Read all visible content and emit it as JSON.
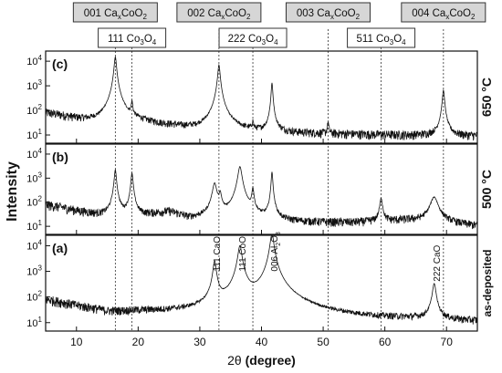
{
  "chart_data": {
    "type": "line",
    "xlabel_prefix": "2θ",
    "xlabel_unit": "(degree)",
    "ylabel": "Intensity",
    "xlim": [
      5,
      75
    ],
    "x_ticks": [
      10,
      20,
      30,
      40,
      50,
      60,
      70
    ],
    "y_scale": "log",
    "ylim": [
      6,
      20000
    ],
    "y_ticks": [
      {
        "base": "10",
        "exp": "1",
        "value": 10
      },
      {
        "base": "10",
        "exp": "2",
        "value": 100
      },
      {
        "base": "10",
        "exp": "3",
        "value": 1000
      },
      {
        "base": "10",
        "exp": "4",
        "value": 10000
      }
    ],
    "reference_lines_x": [
      16.3,
      19.0,
      33.1,
      38.6,
      50.8,
      59.4,
      69.5
    ],
    "reference_labels": [
      {
        "id": "001",
        "parts": [
          "001 Ca",
          "x",
          "CoO",
          "2"
        ],
        "x": 16.3,
        "row": 0
      },
      {
        "id": "002",
        "parts": [
          "002 Ca",
          "x",
          "CoO",
          "2"
        ],
        "x": 33.1,
        "row": 0
      },
      {
        "id": "003",
        "parts": [
          "003 Ca",
          "x",
          "CoO",
          "2"
        ],
        "x": 50.8,
        "row": 0
      },
      {
        "id": "004",
        "parts": [
          "004 Ca",
          "x",
          "CoO",
          "2"
        ],
        "x": 69.5,
        "row": 0
      },
      {
        "id": "111co3o4",
        "parts": [
          "111 Co",
          "3",
          "O",
          "4"
        ],
        "x": 19.0,
        "row": 1
      },
      {
        "id": "222co3o4",
        "parts": [
          "222 Co",
          "3",
          "O",
          "4"
        ],
        "x": 38.6,
        "row": 1
      },
      {
        "id": "511co3o4",
        "parts": [
          "511 Co",
          "3",
          "O",
          "4"
        ],
        "x": 59.4,
        "row": 1
      }
    ],
    "panels": [
      {
        "id": "c",
        "label": "(c)",
        "side_label": "650 °C",
        "baseline": [
          [
            5,
            80
          ],
          [
            10,
            45
          ],
          [
            14,
            25
          ],
          [
            20,
            30
          ],
          [
            25,
            22
          ],
          [
            30,
            14
          ],
          [
            40,
            12
          ],
          [
            50,
            11
          ],
          [
            60,
            10
          ],
          [
            75,
            9
          ]
        ],
        "peaks": [
          {
            "x": 16.3,
            "h": 15000,
            "w": 0.32
          },
          {
            "x": 19.0,
            "h": 180,
            "w": 0.22
          },
          {
            "x": 33.1,
            "h": 7000,
            "w": 0.32
          },
          {
            "x": 38.6,
            "h": 20,
            "w": 0.2
          },
          {
            "x": 41.7,
            "h": 1300,
            "w": 0.22
          },
          {
            "x": 50.8,
            "h": 22,
            "w": 0.22
          },
          {
            "x": 69.5,
            "h": 650,
            "w": 0.3
          }
        ],
        "annotations": []
      },
      {
        "id": "b",
        "label": "(b)",
        "side_label": "500 °C",
        "baseline": [
          [
            5,
            80
          ],
          [
            10,
            45
          ],
          [
            14,
            28
          ],
          [
            20,
            25
          ],
          [
            25,
            40
          ],
          [
            28,
            20
          ],
          [
            35,
            15
          ],
          [
            45,
            14
          ],
          [
            55,
            14
          ],
          [
            64,
            18
          ],
          [
            75,
            10
          ]
        ],
        "peaks": [
          {
            "x": 16.3,
            "h": 2200,
            "w": 0.3
          },
          {
            "x": 19.0,
            "h": 1600,
            "w": 0.3
          },
          {
            "x": 32.4,
            "h": 600,
            "w": 0.6
          },
          {
            "x": 33.3,
            "h": 200,
            "w": 0.4
          },
          {
            "x": 36.5,
            "h": 3000,
            "w": 0.55
          },
          {
            "x": 38.6,
            "h": 350,
            "w": 0.3
          },
          {
            "x": 41.7,
            "h": 1800,
            "w": 0.22
          },
          {
            "x": 59.4,
            "h": 130,
            "w": 0.4
          },
          {
            "x": 68.0,
            "h": 150,
            "w": 1.1
          }
        ],
        "annotations": []
      },
      {
        "id": "a",
        "label": "(a)",
        "side_label": "as-deposited",
        "baseline": [
          [
            5,
            80
          ],
          [
            10,
            45
          ],
          [
            15,
            25
          ],
          [
            20,
            25
          ],
          [
            25,
            22
          ],
          [
            30,
            18
          ],
          [
            35,
            18
          ],
          [
            45,
            14
          ],
          [
            55,
            12
          ],
          [
            65,
            12
          ],
          [
            75,
            10
          ]
        ],
        "peaks": [
          {
            "x": 32.4,
            "h": 2500,
            "w": 0.45
          },
          {
            "x": 36.5,
            "h": 10000,
            "w": 0.55
          },
          {
            "x": 41.7,
            "h": 30000,
            "w": 0.5
          },
          {
            "x": 68.0,
            "h": 320,
            "w": 0.5
          }
        ],
        "annotations": [
          {
            "id": "111cao",
            "text": "111 CaO",
            "x": 33.3,
            "y": 1000
          },
          {
            "id": "111coo",
            "text": "111 CoO",
            "x": 37.4,
            "y": 1000
          },
          {
            "id": "006al2o3",
            "parts": [
              "006 Al",
              "2",
              "O",
              "3"
            ],
            "x": 42.6,
            "y": 1000
          },
          {
            "id": "222cao",
            "text": "222 CaO",
            "x": 68.9,
            "y": 400
          }
        ]
      }
    ]
  }
}
